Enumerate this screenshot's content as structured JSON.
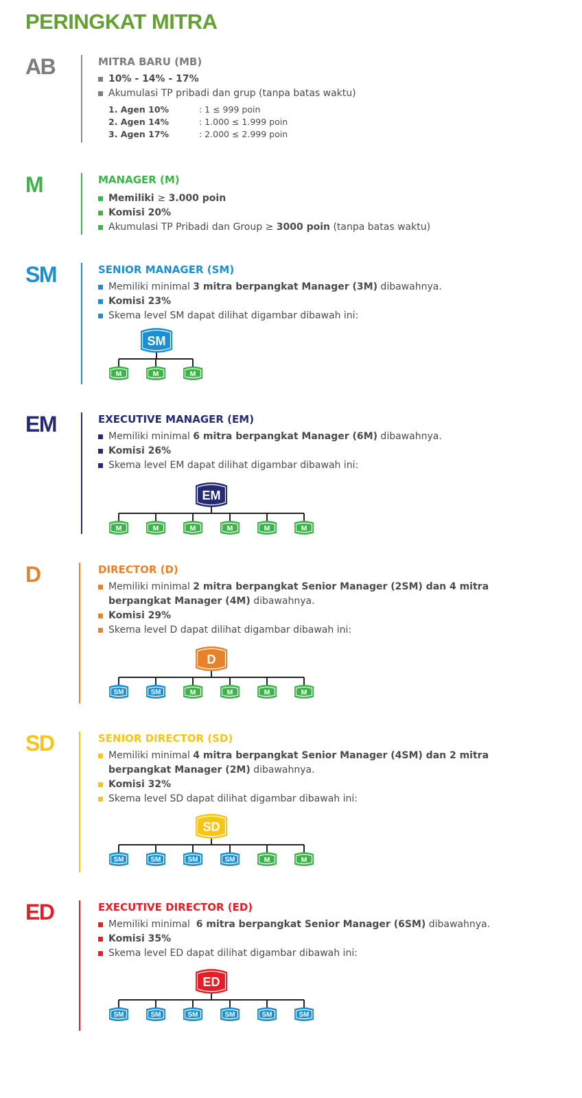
{
  "title": "PERINGKAT MITRA",
  "colors": {
    "title": "#63a033",
    "ab": "#7d7d7d",
    "manager_green": "#3cb44a",
    "sm_blue": "#1b8fd1",
    "em_navy": "#262a72",
    "d_orange": "#e8822a",
    "sd_yellow": "#f5c518",
    "ed_red": "#e31e26"
  },
  "sections": {
    "mb": {
      "abbr": "AB",
      "title": "MITRA BARU (MB)",
      "bullet1": "10% - 14% - 17%",
      "bullet2": "Akumulasi TP pribadi dan grup (tanpa batas waktu)",
      "agents": [
        {
          "name": "1.  Agen 10%",
          "points": ": 1 ≤ 999  poin"
        },
        {
          "name": "2. Agen 14%",
          "points": ": 1.000 ≤ 1.999 poin"
        },
        {
          "name": "3. Agen 17%",
          "points": ": 2.000 ≤ 2.999 poin"
        }
      ]
    },
    "m": {
      "abbr": "M",
      "title": "MANAGER (M)",
      "b1_pre": "Memiliki ",
      "b1_ge": " ≥ ",
      "b1_bold": "3.000 poin",
      "b2": "Komisi 20%",
      "b3_pre": "Akumulasi TP Pribadi dan Group ≥ ",
      "b3_bold": "3000 poin",
      "b3_post": " (tanpa batas waktu)"
    },
    "sm": {
      "abbr": "SM",
      "title": "SENIOR MANAGER (SM)",
      "b1_pre": "Memiliki minimal ",
      "b1_bold": "3 mitra berpangkat Manager (3M)",
      "b1_post": " dibawahnya.",
      "b2": "Komisi 23%",
      "b3": "Skema level SM dapat dilihat digambar dibawah ini:",
      "tree_top": "SM",
      "tree_children": [
        "M",
        "M",
        "M"
      ]
    },
    "em": {
      "abbr": "EM",
      "title": "EXECUTIVE MANAGER (EM)",
      "b1_pre": "Memiliki minimal ",
      "b1_bold": "6 mitra berpangkat Manager (6M)",
      "b1_post": " dibawahnya.",
      "b2": "Komisi 26%",
      "b3": "Skema level EM dapat dilihat digambar dibawah ini:",
      "tree_top": "EM",
      "tree_children": [
        "M",
        "M",
        "M",
        "M",
        "M",
        "M"
      ]
    },
    "d": {
      "abbr": "D",
      "title": "DIRECTOR (D)",
      "b1_pre": "Memiliki minimal ",
      "b1_bold": "2 mitra berpangkat Senior Manager (2SM) dan 4 mitra berpangkat Manager (4M)",
      "b1_post": " dibawahnya.",
      "b2": "Komisi 29%",
      "b3": "Skema level D dapat dilihat digambar dibawah ini:",
      "tree_top": "D",
      "tree_children": [
        "SM",
        "SM",
        "M",
        "M",
        "M",
        "M"
      ]
    },
    "sd": {
      "abbr": "SD",
      "title": "SENIOR DIRECTOR (SD)",
      "b1_pre": "Memiliki minimal ",
      "b1_bold": "4 mitra berpangkat Senior Manager (4SM) dan 2 mitra berpangkat Manager (2M)",
      "b1_post": " dibawahnya.",
      "b2": "Komisi 32%",
      "b3": "Skema level SD dapat dilihat digambar dibawah ini:",
      "tree_top": "SD",
      "tree_children": [
        "SM",
        "SM",
        "SM",
        "SM",
        "M",
        "M"
      ]
    },
    "ed": {
      "abbr": "ED",
      "title": "EXECUTIVE DIRECTOR (ED)",
      "b1_pre": "Memiliki minimal  ",
      "b1_bold": "6 mitra berpangkat Senior Manager (6SM)",
      "b1_post": " dibawahnya.",
      "b2": "Komisi 35%",
      "b3": "Skema level ED dapat dilihat digambar dibawah ini:",
      "tree_top": "ED",
      "tree_children": [
        "SM",
        "SM",
        "SM",
        "SM",
        "SM",
        "SM"
      ]
    }
  }
}
